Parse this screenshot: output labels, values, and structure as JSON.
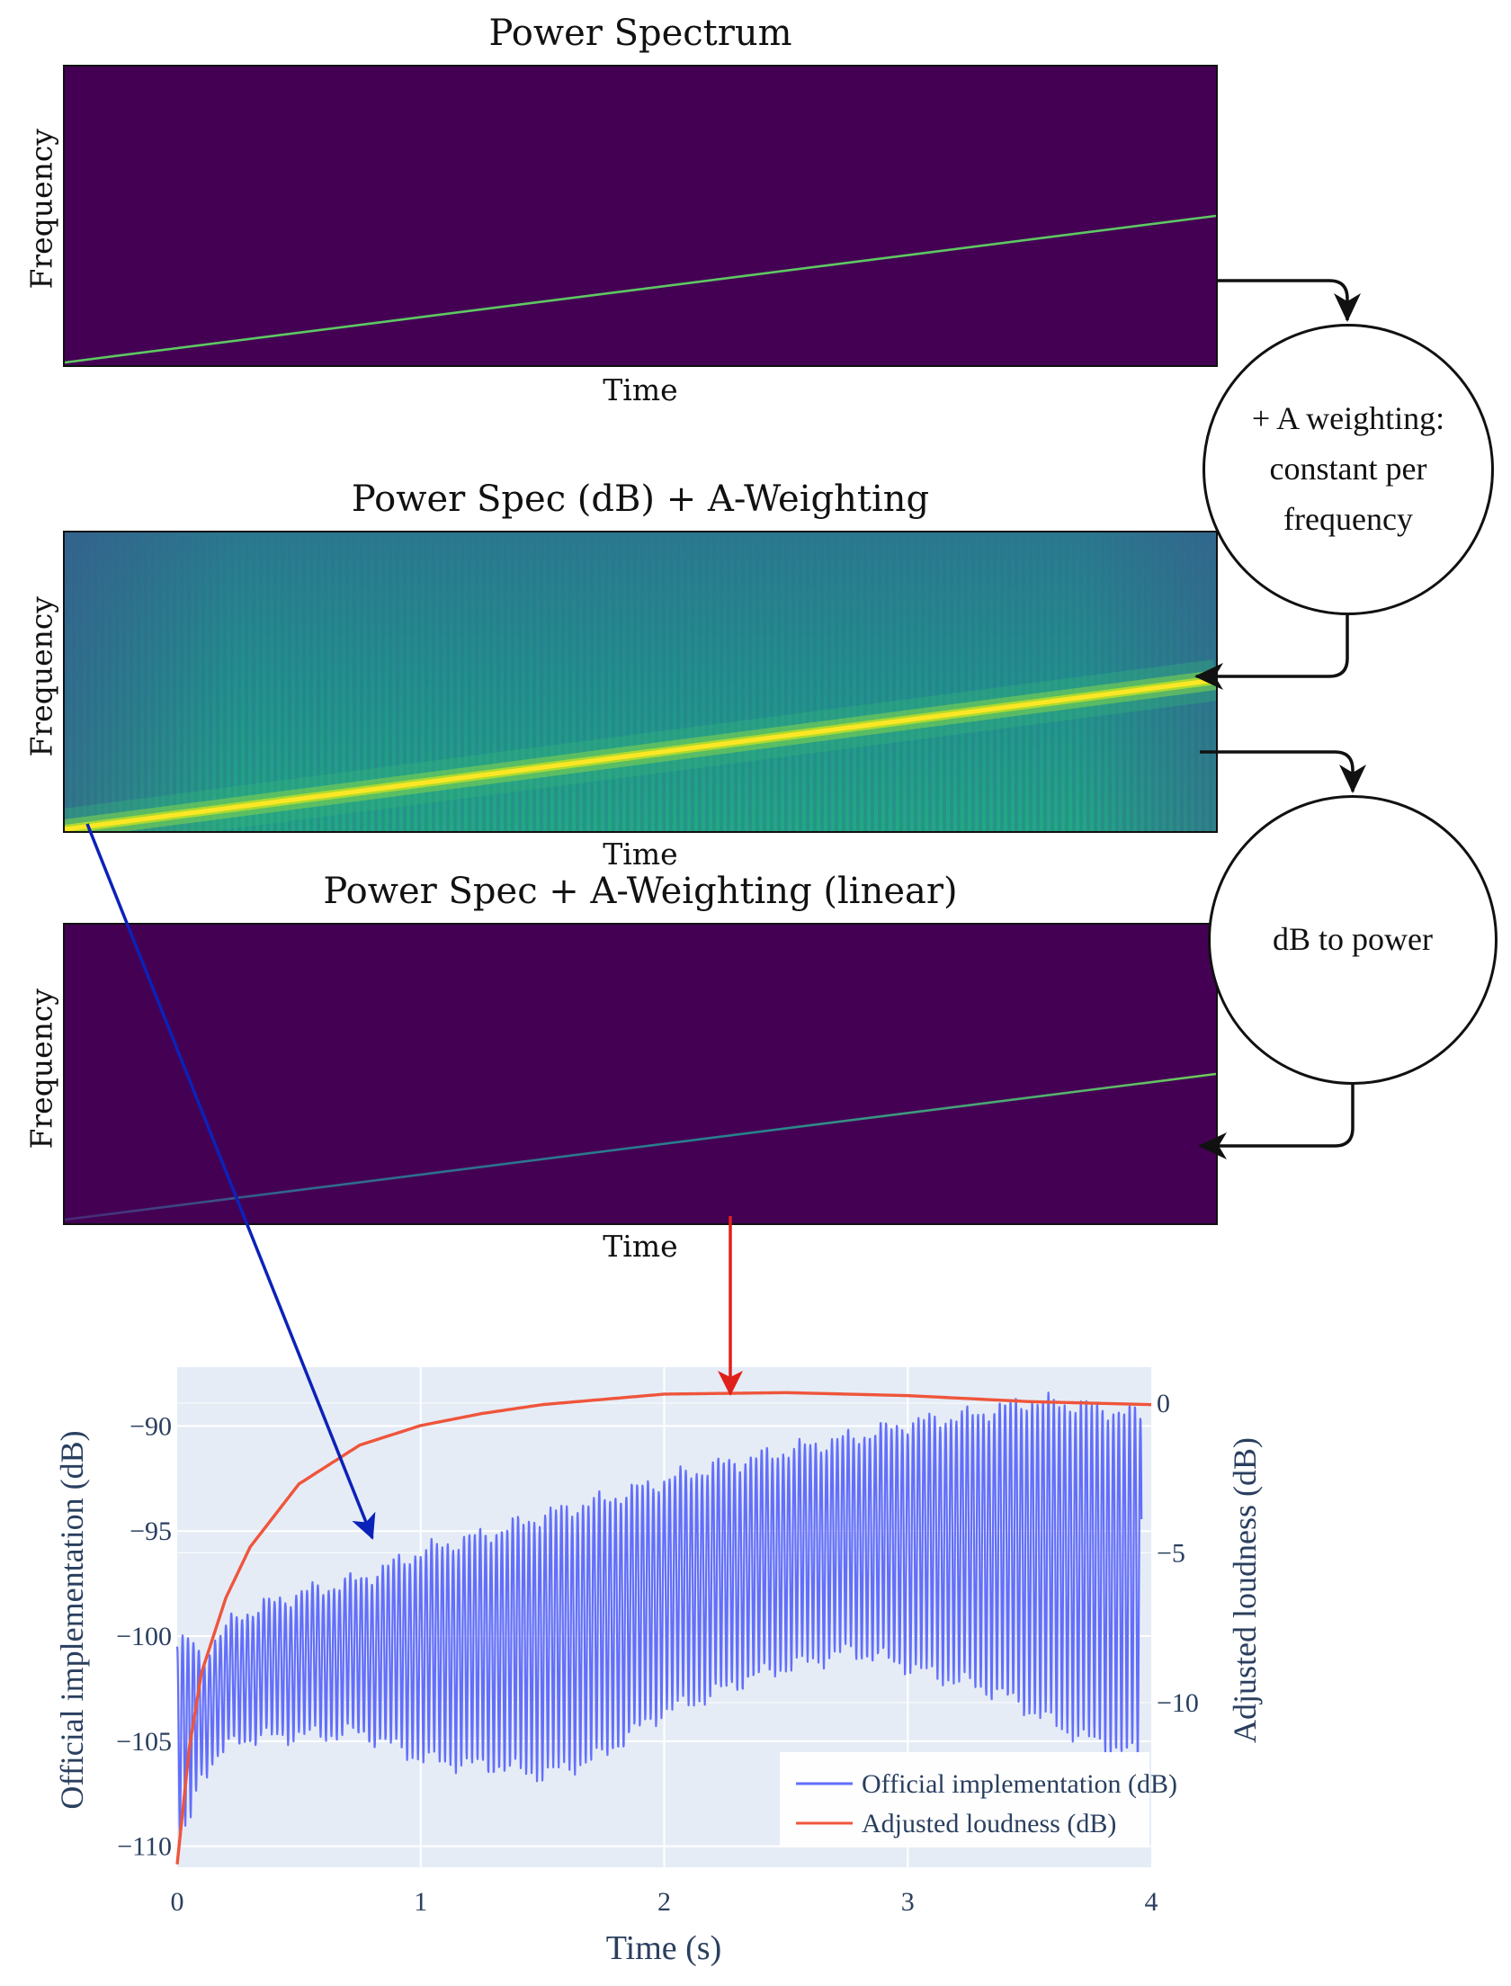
{
  "panels": [
    {
      "title": "Power Spectrum",
      "xlabel": "Time",
      "ylabel": "Frequency"
    },
    {
      "title": "Power Spec (dB) + A-Weighting",
      "xlabel": "Time",
      "ylabel": "Frequency"
    },
    {
      "title": "Power Spec + A-Weighting (linear)",
      "xlabel": "Time",
      "ylabel": "Frequency"
    }
  ],
  "steps": [
    {
      "line1": "+ A weighting:",
      "line2": "constant per",
      "line3": "frequency"
    },
    {
      "line1": "dB to power"
    }
  ],
  "colors": {
    "viridis_dark": "#440154",
    "viridis_teal": "#21918c",
    "viridis_yellow": "#fde725",
    "trace_official": "#636efa",
    "trace_adjusted": "#ef553b",
    "plot_bg": "#e5ecf6",
    "arrow_blue": "#0b22b8",
    "arrow_red": "#e0201b"
  },
  "chart_data": {
    "type": "line",
    "xlabel": "Time (s)",
    "ylabel_left": "Official implementation (dB)",
    "ylabel_right": "Adjusted loudness (dB)",
    "xlim": [
      0,
      4
    ],
    "ylim_left": [
      -111,
      -87.2
    ],
    "ylim_right": [
      -15.5,
      1.2
    ],
    "xticks": [
      "0",
      "1",
      "2",
      "3",
      "4"
    ],
    "yticks_left": [
      "−90",
      "−95",
      "−100",
      "−105",
      "−110"
    ],
    "yticks_right": [
      "0",
      "−5",
      "−10"
    ],
    "legend_position": "bottom-right",
    "series": [
      {
        "name": "Official implementation (dB)",
        "axis": "left",
        "color": "#636efa",
        "envelope_x": [
          0,
          0.05,
          0.1,
          0.25,
          0.5,
          0.75,
          1,
          1.25,
          1.5,
          1.75,
          2,
          2.25,
          2.5,
          2.75,
          3,
          3.25,
          3.5,
          3.75,
          4
        ],
        "upper": [
          -100.5,
          -100.2,
          -101,
          -99,
          -98,
          -97.3,
          -96,
          -95.2,
          -94.3,
          -93.5,
          -92.6,
          -91.8,
          -91.2,
          -90.6,
          -89.9,
          -89.5,
          -88.8,
          -89.1,
          -89.5
        ],
        "lower": [
          -110,
          -109,
          -106.5,
          -105,
          -104.7,
          -104.7,
          -105.8,
          -106.3,
          -106.6,
          -105.8,
          -103.6,
          -102.6,
          -101.5,
          -100.8,
          -101.5,
          -102.3,
          -103.6,
          -105,
          -106.3
        ]
      },
      {
        "name": "Adjusted loudness (dB)",
        "axis": "right",
        "color": "#ef553b",
        "x": [
          0,
          0.05,
          0.1,
          0.2,
          0.3,
          0.5,
          0.75,
          1,
          1.25,
          1.5,
          2,
          2.5,
          3,
          3.5,
          4
        ],
        "y": [
          -15.4,
          -11.5,
          -9,
          -6.5,
          -4.8,
          -2.7,
          -1.4,
          -0.75,
          -0.35,
          -0.05,
          0.3,
          0.35,
          0.25,
          0.05,
          -0.05
        ]
      }
    ]
  }
}
